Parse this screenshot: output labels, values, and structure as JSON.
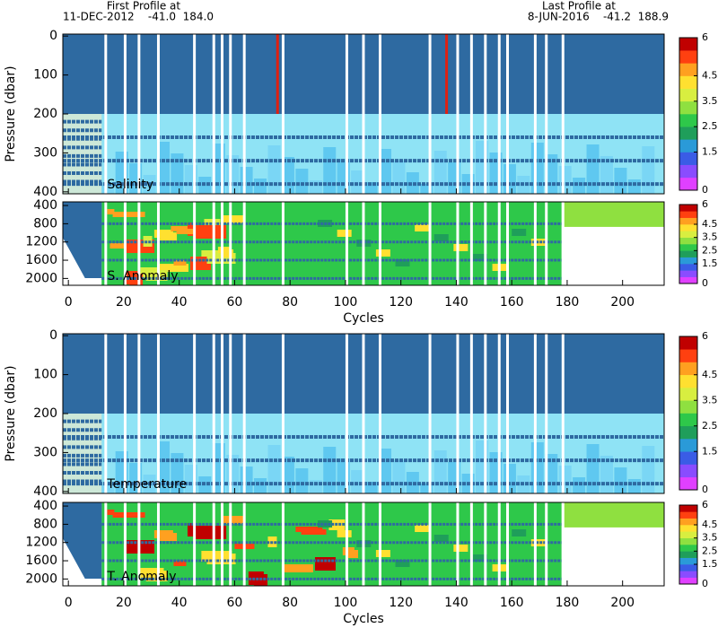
{
  "header": {
    "first_label": "First Profile at",
    "first_value": "11-DEC-2012    -41.0  184.0",
    "last_label": "Last Profile at",
    "last_value": "8-JUN-2016    -41.2  188.9"
  },
  "chart_data": [
    {
      "type": "section",
      "label": "Salinity",
      "ylabel": "Pressure (dbar)",
      "xlim": [
        -2,
        215
      ],
      "xticks": [
        0,
        20,
        40,
        60,
        80,
        100,
        120,
        140,
        160,
        180,
        200
      ],
      "ylim": [
        405,
        -5
      ],
      "yticks": [
        0,
        100,
        200,
        300,
        400
      ],
      "colorbar": {
        "clim": [
          0,
          6
        ],
        "ticks": [
          0,
          1.5,
          2.5,
          3.5,
          4.5,
          6
        ],
        "colors": [
          "#e040ff",
          "#8a4cff",
          "#3a5ce6",
          "#2a9ad8",
          "#1f9e5a",
          "#2ec84a",
          "#8fe040",
          "#d8ee40",
          "#ffe030",
          "#ffa020",
          "#ff4010",
          "#c00000"
        ]
      }
    },
    {
      "type": "anomaly",
      "label": "S. Anomaly",
      "xlabel": "Cycles",
      "xlim": [
        -2,
        215
      ],
      "xticks": [
        0,
        20,
        40,
        60,
        80,
        100,
        120,
        140,
        160,
        180,
        200
      ],
      "ylim": [
        2150,
        320
      ],
      "yticks": [
        400,
        800,
        1200,
        1600,
        2000
      ],
      "colorbar": {
        "clim": [
          0,
          6
        ],
        "ticks": [
          0,
          1.5,
          2.5,
          3.5,
          4.5,
          6
        ],
        "colors": [
          "#e040ff",
          "#8a4cff",
          "#3a5ce6",
          "#2a9ad8",
          "#1f9e5a",
          "#2ec84a",
          "#8fe040",
          "#d8ee40",
          "#ffe030",
          "#ffa020",
          "#ff4010",
          "#c00000"
        ]
      }
    },
    {
      "type": "section",
      "label": "Temperature",
      "ylabel": "Pressure (dbar)",
      "xlim": [
        -2,
        215
      ],
      "xticks": [
        0,
        20,
        40,
        60,
        80,
        100,
        120,
        140,
        160,
        180,
        200
      ],
      "ylim": [
        405,
        -5
      ],
      "yticks": [
        0,
        100,
        200,
        300,
        400
      ],
      "colorbar": {
        "clim": [
          0,
          6
        ],
        "ticks": [
          0,
          1.5,
          2.5,
          3.5,
          4.5,
          6
        ],
        "colors": [
          "#e040ff",
          "#8a4cff",
          "#3a5ce6",
          "#2a9ad8",
          "#1f9e5a",
          "#2ec84a",
          "#8fe040",
          "#d8ee40",
          "#ffe030",
          "#ffa020",
          "#ff4010",
          "#c00000"
        ]
      }
    },
    {
      "type": "anomaly",
      "label": "T. Anomaly",
      "xlabel": "Cycles",
      "xlim": [
        -2,
        215
      ],
      "xticks": [
        0,
        20,
        40,
        60,
        80,
        100,
        120,
        140,
        160,
        180,
        200
      ],
      "ylim": [
        2150,
        320
      ],
      "yticks": [
        400,
        800,
        1200,
        1600,
        2000
      ],
      "colorbar": {
        "clim": [
          0,
          6
        ],
        "ticks": [
          0,
          1.5,
          2.5,
          3.5,
          4.5,
          6
        ],
        "colors": [
          "#e040ff",
          "#8a4cff",
          "#3a5ce6",
          "#2a9ad8",
          "#1f9e5a",
          "#2ec84a",
          "#8fe040",
          "#d8ee40",
          "#ffe030",
          "#ffa020",
          "#ff4010",
          "#c00000"
        ]
      }
    }
  ]
}
